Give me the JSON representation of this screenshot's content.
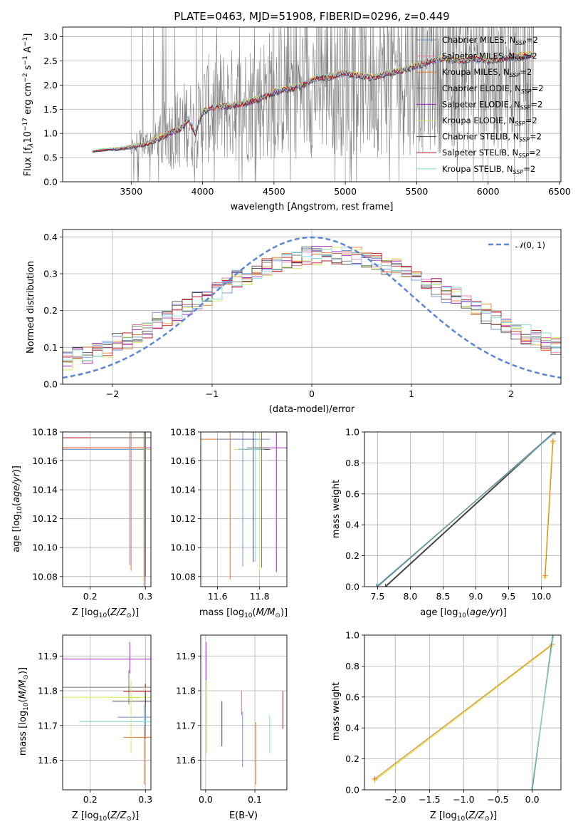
{
  "title": "PLATE=0463, MJD=51908, FIBERID=0296, z=0.449",
  "colors": {
    "chabrier_miles": "#6f8fd6",
    "salpeter_miles": "#e577a8",
    "kroupa_miles": "#e8761e",
    "chabrier_elodie": "#6f7f6f",
    "salpeter_elodie": "#a523c8",
    "kroupa_elodie": "#d6e85a",
    "chabrier_stelib": "#444444",
    "salpeter_stelib": "#c0171a",
    "kroupa_stelib": "#7fd8dc",
    "data": "#808080",
    "normal": "#5b86d8"
  },
  "legend_spectrum": [
    "Chabrier MILES, N_SSP=2",
    "Salpeter MILES, N_SSP=2",
    "Kroupa MILES, N_SSP=2",
    "Chabrier ELODIE, N_SSP=2",
    "Salpeter ELODIE, N_SSP=2",
    "Kroupa ELODIE, N_SSP=2",
    "Chabrier STELIB, N_SSP=2",
    "Salpeter STELIB, N_SSP=2",
    "Kroupa STELIB, N_SSP=2"
  ],
  "legend_hist": "N(0,1)",
  "chart_data": [
    {
      "id": "spectrum",
      "type": "line",
      "xlabel": "wavelength [Angstrom, rest frame]",
      "ylabel": "Flux [f_λ 10^-17 erg cm^-2 s^-1 A^-1]",
      "xlim": [
        3020,
        6510
      ],
      "ylim": [
        0,
        3.2
      ],
      "xticks": [
        3500,
        4000,
        4500,
        5000,
        5500,
        6000,
        6500
      ],
      "yticks": [
        0.0,
        0.5,
        1.0,
        1.5,
        2.0,
        2.5,
        3.0
      ],
      "model_points": [
        [
          3230,
          0.63
        ],
        [
          3300,
          0.66
        ],
        [
          3400,
          0.68
        ],
        [
          3500,
          0.72
        ],
        [
          3600,
          0.78
        ],
        [
          3700,
          0.9
        ],
        [
          3800,
          1.05
        ],
        [
          3850,
          1.1
        ],
        [
          3900,
          1.3
        ],
        [
          3950,
          1.0
        ],
        [
          4000,
          1.45
        ],
        [
          4100,
          1.55
        ],
        [
          4200,
          1.58
        ],
        [
          4300,
          1.62
        ],
        [
          4400,
          1.72
        ],
        [
          4500,
          1.85
        ],
        [
          4600,
          1.92
        ],
        [
          4700,
          2.0
        ],
        [
          4800,
          2.15
        ],
        [
          4900,
          2.18
        ],
        [
          5000,
          2.25
        ],
        [
          5100,
          2.2
        ],
        [
          5200,
          2.15
        ],
        [
          5300,
          2.25
        ],
        [
          5400,
          2.3
        ],
        [
          5500,
          2.4
        ],
        [
          5600,
          2.5
        ],
        [
          5700,
          2.55
        ],
        [
          5800,
          2.5
        ],
        [
          5900,
          2.55
        ],
        [
          6000,
          2.5
        ],
        [
          6100,
          2.55
        ],
        [
          6200,
          2.6
        ],
        [
          6320,
          2.62
        ]
      ],
      "grid": true
    },
    {
      "id": "residuals",
      "type": "line",
      "xlabel": "(data-model)/error",
      "ylabel": "Normed distribution",
      "xlim": [
        -2.5,
        2.5
      ],
      "ylim": [
        0,
        0.42
      ],
      "xticks": [
        -2,
        -1,
        0,
        1,
        2
      ],
      "yticks": [
        0.0,
        0.1,
        0.2,
        0.3,
        0.4
      ],
      "grid": true
    },
    {
      "id": "age_vs_Z",
      "type": "scatter",
      "xlabel": "Z [log10(Z/Z⊙)]",
      "ylabel": "age [log10(age/yr)]",
      "xlim": [
        0.15,
        0.31
      ],
      "ylim": [
        10.073,
        10.18
      ],
      "xticks": [
        0.2,
        0.3
      ],
      "yticks": [
        10.08,
        10.1,
        10.12,
        10.14,
        10.16,
        10.18
      ],
      "grid": true
    },
    {
      "id": "age_vs_mass",
      "type": "scatter",
      "xlabel": "mass [log10(M/M⊙)]",
      "ylabel": "",
      "xlim": [
        11.52,
        11.93
      ],
      "ylim": [
        10.073,
        10.18
      ],
      "xticks": [
        11.6,
        11.8
      ],
      "yticks": [
        10.08,
        10.1,
        10.12,
        10.14,
        10.16,
        10.18
      ],
      "grid": true
    },
    {
      "id": "mass_weight_vs_age",
      "type": "line",
      "xlabel": "age [log10(age/yr)]",
      "ylabel": "mass weight",
      "xlim": [
        7.3,
        10.3
      ],
      "ylim": [
        0,
        1.0
      ],
      "xticks": [
        7.5,
        8.0,
        8.5,
        9.0,
        9.5,
        10.0
      ],
      "yticks": [
        0.0,
        0.2,
        0.4,
        0.6,
        0.8,
        1.0
      ],
      "grid": true
    },
    {
      "id": "mass_vs_Z",
      "type": "scatter",
      "xlabel": "Z [log10(Z/Z⊙)]",
      "ylabel": "mass [log10(M/M⊙)]",
      "xlim": [
        0.15,
        0.31
      ],
      "ylim": [
        11.515,
        11.96
      ],
      "xticks": [
        0.2,
        0.3
      ],
      "yticks": [
        11.6,
        11.7,
        11.8,
        11.9
      ],
      "grid": true
    },
    {
      "id": "mass_vs_ebv",
      "type": "scatter",
      "xlabel": "E(B-V)",
      "ylabel": "",
      "xlim": [
        -0.01,
        0.165
      ],
      "ylim": [
        11.515,
        11.96
      ],
      "xticks": [
        0.0,
        0.1
      ],
      "yticks": [
        11.6,
        11.7,
        11.8,
        11.9
      ],
      "grid": true
    },
    {
      "id": "mass_weight_vs_Z",
      "type": "line",
      "xlabel": "Z [log10(Z/Z⊙)]",
      "ylabel": "mass weight",
      "xlim": [
        -2.45,
        0.42
      ],
      "ylim": [
        0,
        1.0
      ],
      "xticks": [
        -2.0,
        -1.5,
        -1.0,
        -0.5,
        0.0
      ],
      "yticks": [
        0.0,
        0.2,
        0.4,
        0.6,
        0.8,
        1.0
      ],
      "grid": true
    }
  ]
}
